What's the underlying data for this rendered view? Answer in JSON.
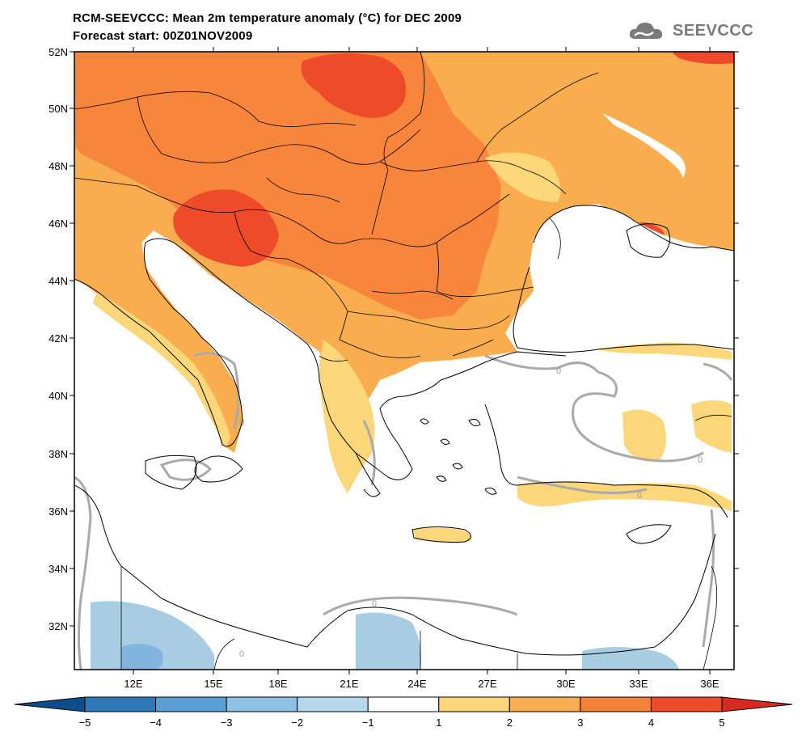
{
  "header": {
    "title": "RCM-SEEVCCC: Mean 2m temperature anomaly (°C) for DEC 2009",
    "subtitle": "Forecast start: 00Z01NOV2009",
    "logo_text": "SEEVCCC"
  },
  "map": {
    "region": "Southeastern Europe and Eastern Mediterranean",
    "lat_range": [
      30.6,
      52
    ],
    "lon_range": [
      9.8,
      37
    ],
    "lat_ticks": [
      "52N",
      "50N",
      "48N",
      "46N",
      "44N",
      "42N",
      "40N",
      "38N",
      "36N",
      "34N",
      "32N"
    ],
    "lon_ticks": [
      "12E",
      "15E",
      "18E",
      "21E",
      "24E",
      "27E",
      "30E",
      "33E",
      "36E"
    ],
    "contour_label": "0",
    "colors": {
      "very_warm": "#ee4b2b",
      "warm": "#f6823a",
      "mild": "#f9ad4f",
      "slight": "#fcd77a",
      "neutral": "#ffffff",
      "cool": "#a8cde3",
      "colder": "#82b6de",
      "zero_contour": "#aaaaaa"
    }
  },
  "colorbar": {
    "labels": [
      "−5",
      "−4",
      "−3",
      "−2",
      "−1",
      "1",
      "2",
      "3",
      "4",
      "5"
    ],
    "colors": [
      "#0e4d8c",
      "#2f78b8",
      "#5a9fd4",
      "#8dc0e2",
      "#b6d7ea",
      "#ffffff",
      "#fcd77a",
      "#f9ad4f",
      "#f6823a",
      "#ee4b2b",
      "#d42a20"
    ]
  }
}
